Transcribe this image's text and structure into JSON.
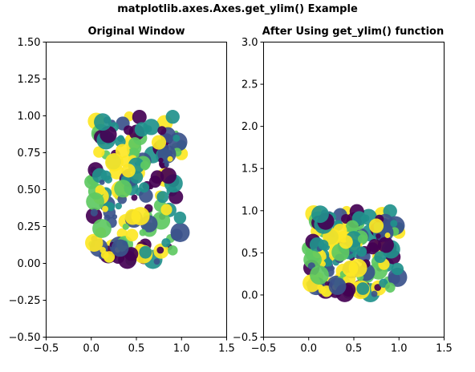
{
  "suptitle": "matplotlib.axes.Axes.get_ylim() Example",
  "chart_data": [
    {
      "type": "scatter",
      "title": "Original Window",
      "xlabel": "",
      "ylabel": "",
      "xlim": [
        -0.5,
        1.5
      ],
      "ylim": [
        -0.5,
        1.5
      ],
      "xticks": [
        "−0.5",
        "0.0",
        "0.5",
        "1.0",
        "1.5"
      ],
      "xtick_values": [
        -0.5,
        0.0,
        0.5,
        1.0,
        1.5
      ],
      "yticks": [
        "−0.50",
        "−0.25",
        "0.00",
        "0.25",
        "0.50",
        "0.75",
        "1.00",
        "1.25",
        "1.50"
      ],
      "ytick_values": [
        -0.5,
        -0.25,
        0.0,
        0.25,
        0.5,
        0.75,
        1.0,
        1.25,
        1.5
      ],
      "grid": false,
      "colormap": [
        "#440154",
        "#3b528b",
        "#21918c",
        "#5ec962",
        "#fde725"
      ],
      "x_range": [
        0.0,
        1.0
      ],
      "y_range": [
        0.0,
        1.0
      ]
    },
    {
      "type": "scatter",
      "title": "After Using get_ylim() function",
      "xlabel": "",
      "ylabel": "",
      "xlim": [
        -0.5,
        1.5
      ],
      "ylim": [
        -0.5,
        3.0
      ],
      "xticks": [
        "−0.5",
        "0.0",
        "0.5",
        "1.0",
        "1.5"
      ],
      "xtick_values": [
        -0.5,
        0.0,
        0.5,
        1.0,
        1.5
      ],
      "yticks": [
        "−0.5",
        "0.0",
        "0.5",
        "1.0",
        "1.5",
        "2.0",
        "2.5",
        "3.0"
      ],
      "ytick_values": [
        -0.5,
        0.0,
        0.5,
        1.0,
        1.5,
        2.0,
        2.5,
        3.0
      ],
      "grid": false,
      "colormap": [
        "#440154",
        "#3b528b",
        "#21918c",
        "#5ec962",
        "#fde725"
      ],
      "x_range": [
        0.0,
        1.0
      ],
      "y_range": [
        0.0,
        1.0
      ]
    }
  ]
}
